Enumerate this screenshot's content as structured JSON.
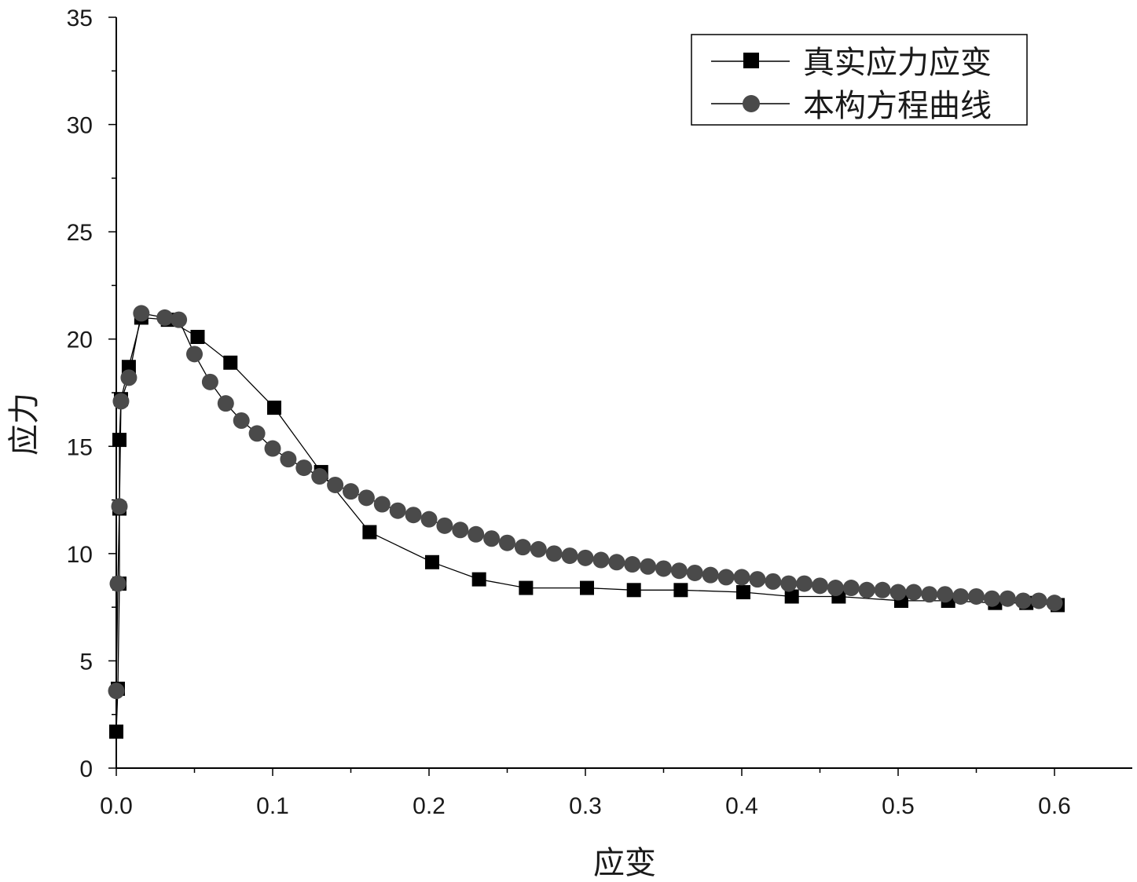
{
  "chart_data": {
    "type": "line",
    "xlabel": "应变",
    "ylabel": "应力",
    "xlim": [
      0,
      0.65
    ],
    "ylim": [
      0,
      35
    ],
    "x_ticks": [
      "0.0",
      "0.1",
      "0.2",
      "0.3",
      "0.4",
      "0.5",
      "0.6"
    ],
    "y_ticks": [
      "0",
      "5",
      "10",
      "15",
      "20",
      "25",
      "30",
      "35"
    ],
    "grid": false,
    "legend_position": "top-right",
    "series": [
      {
        "name": "真实应力应变",
        "marker": "square",
        "color": "#000000",
        "points": [
          [
            0.0,
            1.7
          ],
          [
            0.001,
            3.7
          ],
          [
            0.002,
            8.6
          ],
          [
            0.002,
            12.1
          ],
          [
            0.002,
            15.3
          ],
          [
            0.003,
            17.2
          ],
          [
            0.008,
            18.7
          ],
          [
            0.016,
            21.0
          ],
          [
            0.033,
            20.9
          ],
          [
            0.052,
            20.1
          ],
          [
            0.073,
            18.9
          ],
          [
            0.101,
            16.8
          ],
          [
            0.131,
            13.8
          ],
          [
            0.162,
            11.0
          ],
          [
            0.202,
            9.6
          ],
          [
            0.232,
            8.8
          ],
          [
            0.262,
            8.4
          ],
          [
            0.301,
            8.4
          ],
          [
            0.331,
            8.3
          ],
          [
            0.361,
            8.3
          ],
          [
            0.401,
            8.2
          ],
          [
            0.432,
            8.0
          ],
          [
            0.462,
            8.0
          ],
          [
            0.502,
            7.8
          ],
          [
            0.532,
            7.8
          ],
          [
            0.562,
            7.7
          ],
          [
            0.582,
            7.7
          ],
          [
            0.602,
            7.6
          ]
        ]
      },
      {
        "name": "本构方程曲线",
        "marker": "circle",
        "color": "#4a4a4a",
        "points": [
          [
            0.0,
            3.6
          ],
          [
            0.001,
            8.6
          ],
          [
            0.002,
            12.2
          ],
          [
            0.003,
            17.1
          ],
          [
            0.008,
            18.2
          ],
          [
            0.016,
            21.2
          ],
          [
            0.031,
            21.0
          ],
          [
            0.04,
            20.9
          ],
          [
            0.05,
            19.3
          ],
          [
            0.06,
            18.0
          ],
          [
            0.07,
            17.0
          ],
          [
            0.08,
            16.2
          ],
          [
            0.09,
            15.6
          ],
          [
            0.1,
            14.9
          ],
          [
            0.11,
            14.4
          ],
          [
            0.12,
            14.0
          ],
          [
            0.13,
            13.6
          ],
          [
            0.14,
            13.2
          ],
          [
            0.15,
            12.9
          ],
          [
            0.16,
            12.6
          ],
          [
            0.17,
            12.3
          ],
          [
            0.18,
            12.0
          ],
          [
            0.19,
            11.8
          ],
          [
            0.2,
            11.6
          ],
          [
            0.21,
            11.3
          ],
          [
            0.22,
            11.1
          ],
          [
            0.23,
            10.9
          ],
          [
            0.24,
            10.7
          ],
          [
            0.25,
            10.5
          ],
          [
            0.26,
            10.3
          ],
          [
            0.27,
            10.2
          ],
          [
            0.28,
            10.0
          ],
          [
            0.29,
            9.9
          ],
          [
            0.3,
            9.8
          ],
          [
            0.31,
            9.7
          ],
          [
            0.32,
            9.6
          ],
          [
            0.33,
            9.5
          ],
          [
            0.34,
            9.4
          ],
          [
            0.35,
            9.3
          ],
          [
            0.36,
            9.2
          ],
          [
            0.37,
            9.1
          ],
          [
            0.38,
            9.0
          ],
          [
            0.39,
            8.9
          ],
          [
            0.4,
            8.9
          ],
          [
            0.41,
            8.8
          ],
          [
            0.42,
            8.7
          ],
          [
            0.43,
            8.6
          ],
          [
            0.44,
            8.6
          ],
          [
            0.45,
            8.5
          ],
          [
            0.46,
            8.4
          ],
          [
            0.47,
            8.4
          ],
          [
            0.48,
            8.3
          ],
          [
            0.49,
            8.3
          ],
          [
            0.5,
            8.2
          ],
          [
            0.51,
            8.2
          ],
          [
            0.52,
            8.1
          ],
          [
            0.53,
            8.1
          ],
          [
            0.54,
            8.0
          ],
          [
            0.55,
            8.0
          ],
          [
            0.56,
            7.9
          ],
          [
            0.57,
            7.9
          ],
          [
            0.58,
            7.8
          ],
          [
            0.59,
            7.8
          ],
          [
            0.6,
            7.7
          ]
        ]
      }
    ]
  }
}
